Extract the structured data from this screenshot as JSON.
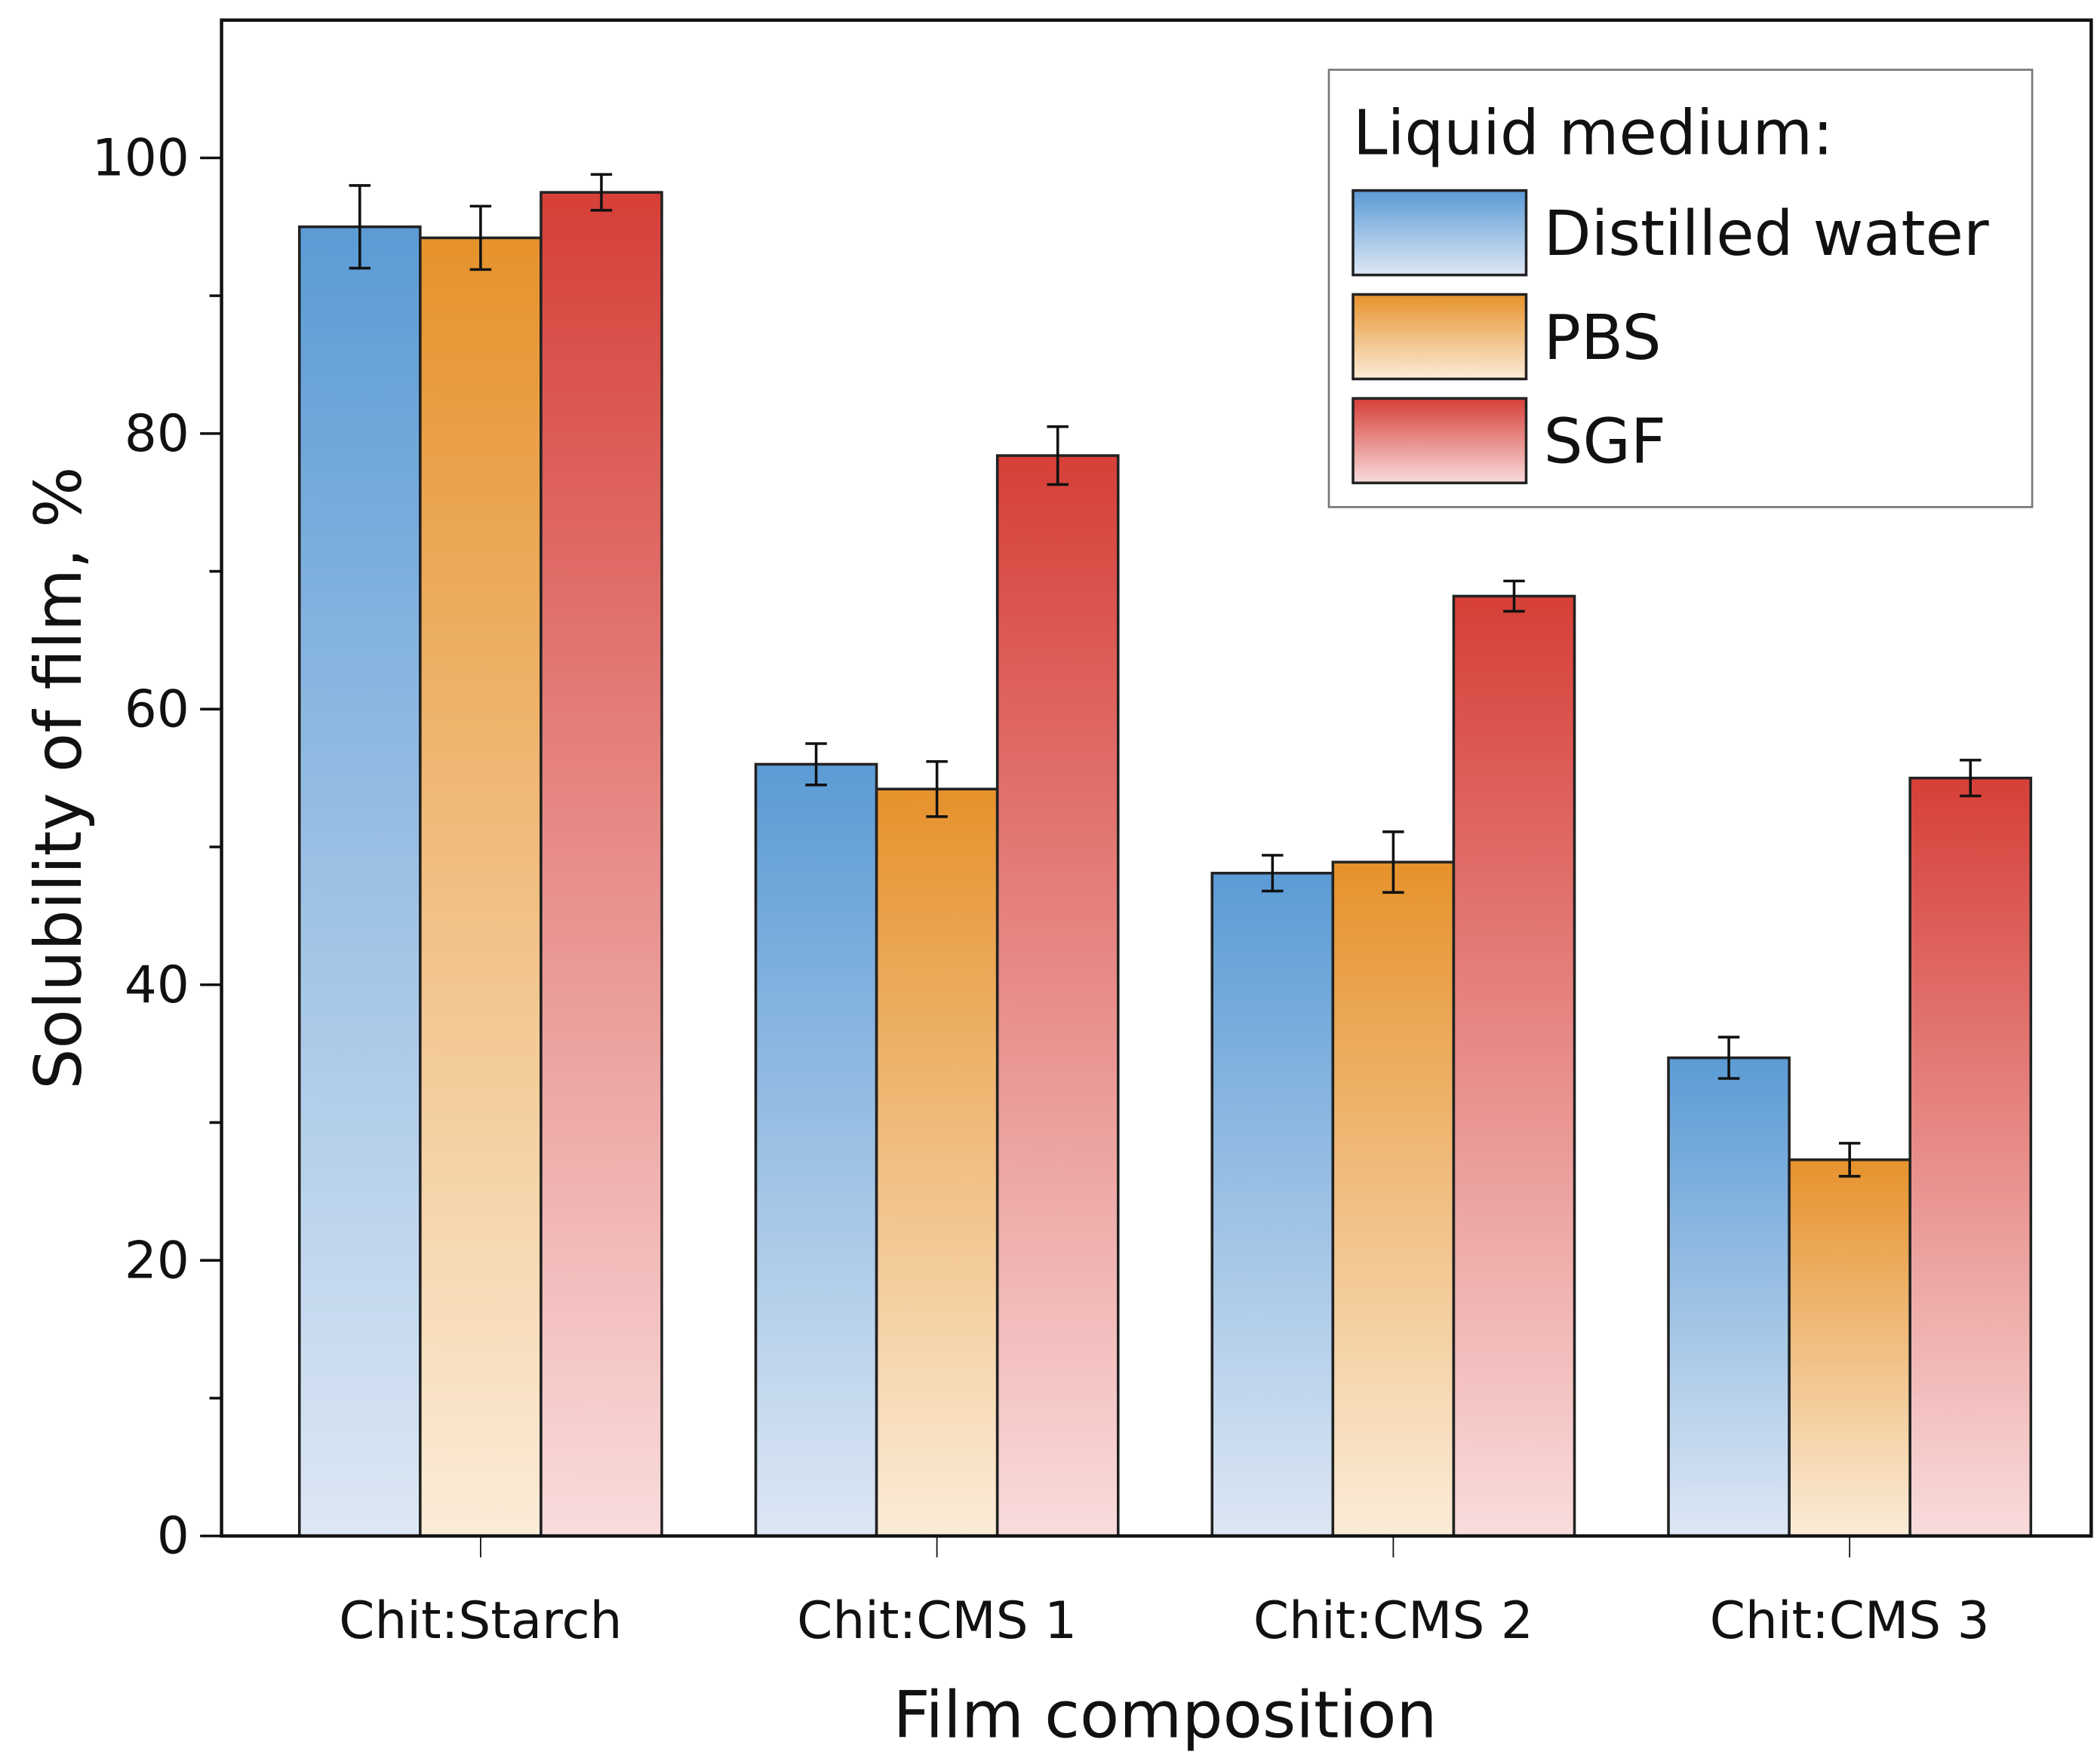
{
  "chart_data": {
    "type": "bar",
    "xlabel": "Film composition",
    "ylabel": "Solubility of film, %",
    "ylim": [
      0,
      110
    ],
    "yticks": [
      0,
      20,
      40,
      60,
      80,
      100
    ],
    "yticks_labels": [
      "0",
      "20",
      "40",
      "60",
      "80",
      "100"
    ],
    "minor_tick_step": 10,
    "categories": [
      "Chit:Starch",
      "Chit:CMS 1",
      "Chit:CMS 2",
      "Chit:CMS 3"
    ],
    "legend": {
      "title": "Liquid medium:",
      "placement": "top-right"
    },
    "series": [
      {
        "name": "Distilled water",
        "values": [
          95.0,
          56.0,
          48.1,
          34.7
        ],
        "errors": [
          3.0,
          1.5,
          1.3,
          1.5
        ],
        "color_top": "#5b9bd5",
        "color_bottom": "#dde7f4"
      },
      {
        "name": "PBS",
        "values": [
          94.2,
          54.2,
          48.9,
          27.3
        ],
        "errors": [
          2.3,
          2.0,
          2.2,
          1.2
        ],
        "color_top": "#e6922c",
        "color_bottom": "#fbecd8"
      },
      {
        "name": "SGF",
        "values": [
          97.5,
          78.4,
          68.2,
          55.0
        ],
        "errors": [
          1.3,
          2.1,
          1.1,
          1.3
        ],
        "color_top": "#d63f38",
        "color_bottom": "#f9dcdc"
      }
    ]
  }
}
